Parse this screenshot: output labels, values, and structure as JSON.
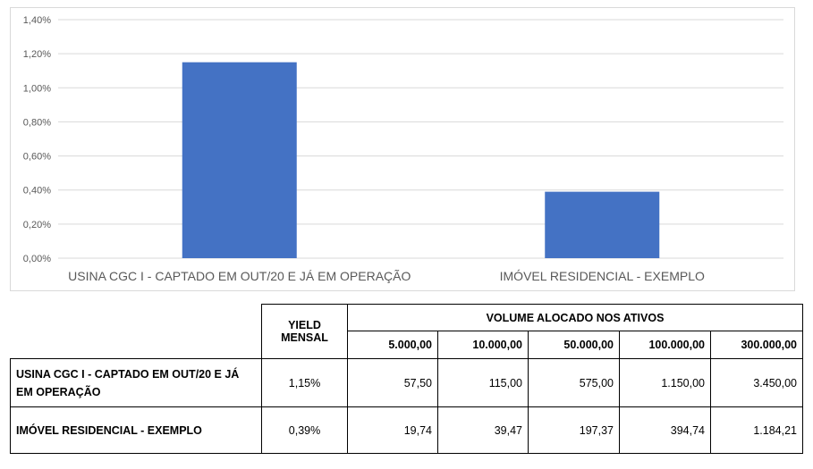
{
  "chart_data": {
    "type": "bar",
    "categories": [
      "USINA CGC I - CAPTADO EM OUT/20 E JÁ EM OPERAÇÃO",
      "IMÓVEL RESIDENCIAL - EXEMPLO"
    ],
    "values": [
      1.15,
      0.39
    ],
    "ylim": [
      0,
      1.4
    ],
    "yticks": [
      0,
      0.2,
      0.4,
      0.6,
      0.8,
      1.0,
      1.2,
      1.4
    ],
    "ytick_labels": [
      "0,00%",
      "0,20%",
      "0,40%",
      "0,60%",
      "0,80%",
      "1,00%",
      "1,20%",
      "1,40%"
    ],
    "grid": true,
    "bar_color": "#4472c4"
  },
  "table": {
    "yield_header": "YIELD MENSAL",
    "volume_header": "VOLUME ALOCADO NOS ATIVOS",
    "amounts": [
      "5.000,00",
      "10.000,00",
      "50.000,00",
      "100.000,00",
      "300.000,00"
    ],
    "rows": [
      {
        "name": "USINA CGC I - CAPTADO EM OUT/20 E JÁ EM OPERAÇÃO",
        "yield": "1,15%",
        "values": [
          "57,50",
          "115,00",
          "575,00",
          "1.150,00",
          "3.450,00"
        ]
      },
      {
        "name": "IMÓVEL RESIDENCIAL - EXEMPLO",
        "yield": "0,39%",
        "values": [
          "19,74",
          "39,47",
          "197,37",
          "394,74",
          "1.184,21"
        ]
      }
    ]
  }
}
